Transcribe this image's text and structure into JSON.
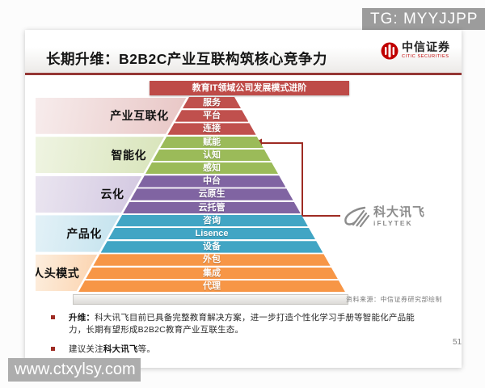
{
  "overlay": {
    "tg_badge": "TG: MYYJJPP",
    "watermark": "www.ctxylsy.com",
    "page_number": "51"
  },
  "header": {
    "title": "长期升维：B2B2C产业互联构筑核心竞争力",
    "logo_cn": "中信证券",
    "logo_en": "CITIC SECURITIES"
  },
  "banner": "教育IT领域公司发展模式进阶",
  "colors": {
    "banner_red": "#BE4B48",
    "divider_red": "#953735",
    "arrow_red": "#9E2B23"
  },
  "pyramid": {
    "levels": [
      {
        "label": "产业互联化",
        "color": "#C0504D",
        "band": [
          "#f7ecec",
          "#e8c6c5"
        ],
        "rows": [
          "服务",
          "平台",
          "连接"
        ]
      },
      {
        "label": "智能化",
        "color": "#9BBB59",
        "band": [
          "#eff4e2",
          "#d8e4ba"
        ],
        "rows": [
          "赋能",
          "认知",
          "感知"
        ]
      },
      {
        "label": "云化",
        "color": "#8064A2",
        "band": [
          "#eae5f0",
          "#d3c8e1"
        ],
        "rows": [
          "中台",
          "云原生",
          "云托管"
        ]
      },
      {
        "label": "产品化",
        "color": "#41A5C4",
        "band": [
          "#e3f1f7",
          "#c4e3ee"
        ],
        "rows": [
          "咨询",
          "Lisence",
          "设备"
        ]
      },
      {
        "label": "人头模式",
        "color": "#F79646",
        "band": [
          "#fdeede",
          "#fbd3ae"
        ],
        "rows": [
          "外包",
          "集成",
          "代理"
        ]
      }
    ],
    "annotation_target_row": "赋能"
  },
  "iflytek": {
    "cn": "科大讯飞",
    "en": "iFLYTEK"
  },
  "source_note": "资料来源：中信证券研究部绘制",
  "bullets": [
    {
      "bold": "升维：",
      "text": "科大讯飞目前已具备完整教育解决方案，进一步打造个性化学习手册等智能化产品能力，长期有望形成B2B2C教育产业互联生态。"
    },
    {
      "prefix": "建议关注",
      "bold": "科大讯飞",
      "suffix": "等。"
    }
  ]
}
